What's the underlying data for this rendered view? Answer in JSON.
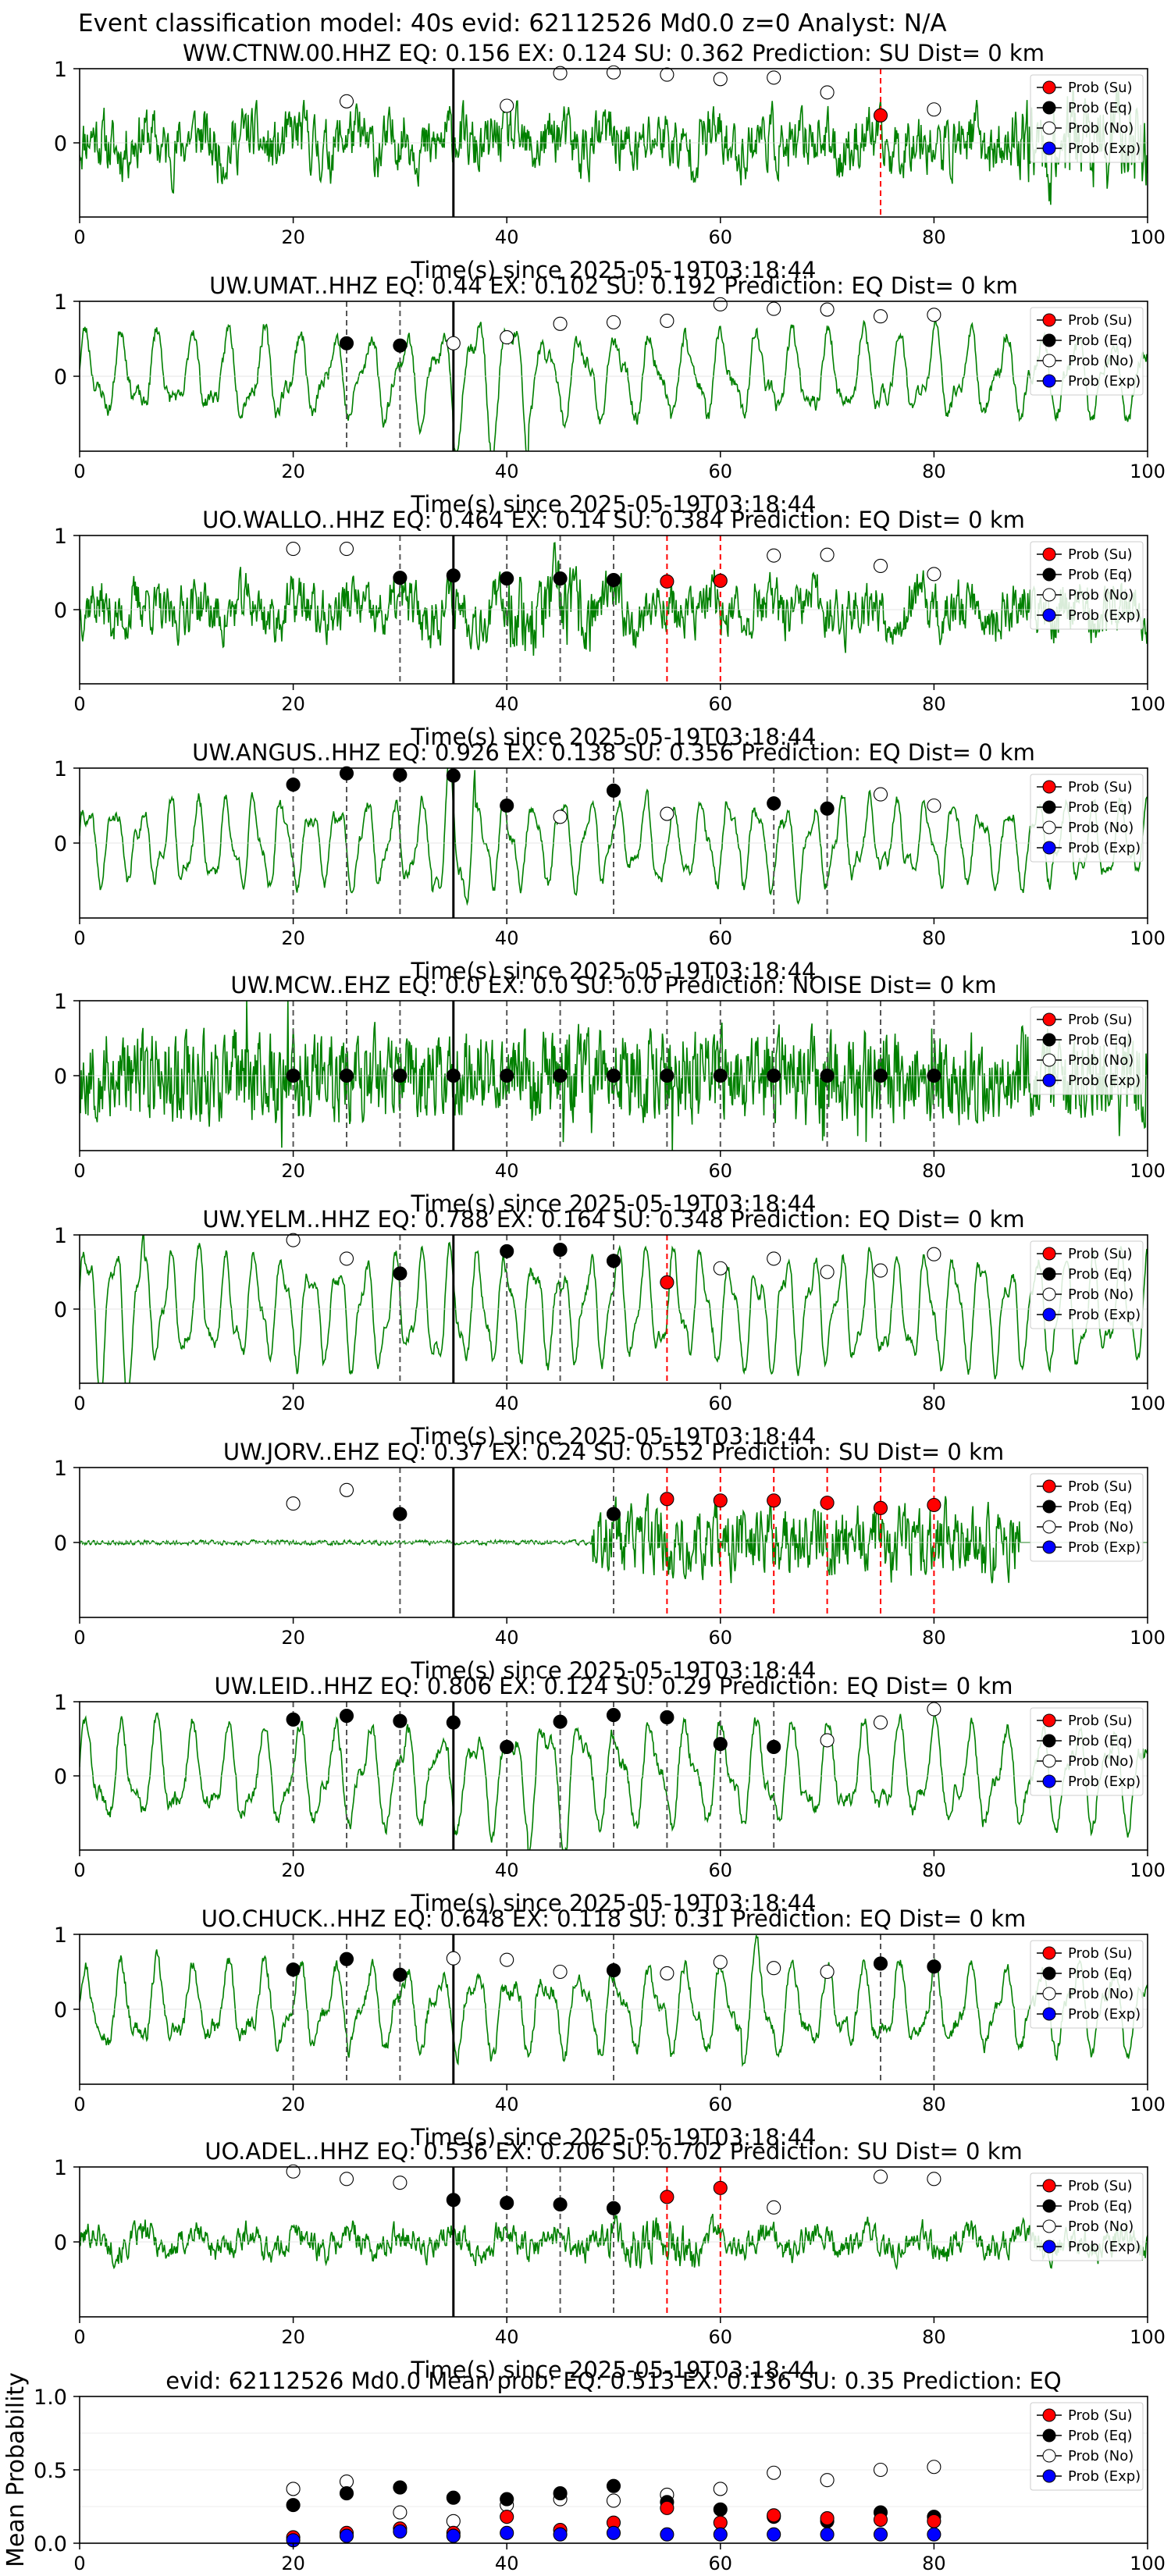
{
  "figure": {
    "suptitle": "Event classification model: 40s evid: 62112526 Md0.0 z=0 Analyst: N/A"
  },
  "colors": {
    "waveform": "#008000",
    "su_marker": "#ff0000",
    "eq_marker": "#000000",
    "no_marker": "#ffffff",
    "exp_marker": "#0000ff",
    "su_line": "#ff0000",
    "eq_line": "#555555",
    "event_line": "#000000"
  },
  "legend": {
    "labels": [
      "Prob (Su)",
      "Prob (Eq)",
      "Prob (No)",
      "Prob (Exp)"
    ],
    "placement": "upper-right"
  },
  "chart_data": [
    {
      "type": "line",
      "title": "WW.CTNW.00.HHZ   EQ: 0.156  EX: 0.124  SU: 0.362   Prediction: SU    Dist= 0 km",
      "xlabel": "Time(s) since 2025-05-19T03:18:44",
      "xlim": [
        0,
        100
      ],
      "ylim": [
        -1,
        1
      ],
      "x_ticks": [
        "0",
        "20",
        "40",
        "60",
        "80",
        "100"
      ],
      "y_ticks": [
        "0",
        "1"
      ],
      "event_line_x": 35,
      "waveform": {
        "amp": 0.55,
        "style": "noise",
        "burst": [
          88,
          100,
          1.6
        ],
        "seed": 11
      },
      "eq_lines": [],
      "su_lines": [
        75
      ],
      "prob_no": [
        [
          25,
          0.56
        ],
        [
          40,
          0.5
        ],
        [
          45,
          0.94
        ],
        [
          50,
          0.95
        ],
        [
          55,
          0.92
        ],
        [
          60,
          0.86
        ],
        [
          65,
          0.88
        ],
        [
          70,
          0.68
        ],
        [
          80,
          0.45
        ]
      ],
      "prob_eq": [],
      "prob_su": [
        [
          75,
          0.37
        ]
      ],
      "prob_exp": []
    },
    {
      "type": "line",
      "title": "UW.UMAT..HHZ   EQ: 0.44  EX: 0.102  SU: 0.192   Prediction: EQ    Dist= 0 km",
      "xlabel": "Time(s) since 2025-05-19T03:18:44",
      "xlim": [
        0,
        100
      ],
      "ylim": [
        -1,
        1
      ],
      "x_ticks": [
        "0",
        "20",
        "40",
        "60",
        "80",
        "100"
      ],
      "y_ticks": [
        "0",
        "1"
      ],
      "event_line_x": 35,
      "waveform": {
        "amp": 0.5,
        "style": "wave",
        "burst": [
          35,
          42,
          1.7
        ],
        "seed": 23
      },
      "eq_lines": [
        25,
        30
      ],
      "su_lines": [],
      "prob_no": [
        [
          35,
          0.44
        ],
        [
          40,
          0.52
        ],
        [
          45,
          0.7
        ],
        [
          50,
          0.72
        ],
        [
          55,
          0.74
        ],
        [
          60,
          0.96
        ],
        [
          65,
          0.9
        ],
        [
          70,
          0.89
        ],
        [
          75,
          0.8
        ],
        [
          80,
          0.82
        ]
      ],
      "prob_eq": [
        [
          25,
          0.44
        ],
        [
          30,
          0.41
        ]
      ],
      "prob_su": [],
      "prob_exp": []
    },
    {
      "type": "line",
      "title": "UO.WALLO..HHZ   EQ: 0.464  EX: 0.14  SU: 0.384   Prediction: EQ    Dist= 0 km",
      "xlabel": "Time(s) since 2025-05-19T03:18:44",
      "xlim": [
        0,
        100
      ],
      "ylim": [
        -1,
        1
      ],
      "x_ticks": [
        "0",
        "20",
        "40",
        "60",
        "80",
        "100"
      ],
      "y_ticks": [
        "0",
        "1"
      ],
      "event_line_x": 35,
      "waveform": {
        "amp": 0.5,
        "style": "noise",
        "burst": [
          40,
          48,
          1.6
        ],
        "seed": 37
      },
      "eq_lines": [
        30,
        40,
        45,
        50
      ],
      "su_lines": [
        55,
        60
      ],
      "prob_no": [
        [
          20,
          0.82
        ],
        [
          25,
          0.82
        ],
        [
          65,
          0.73
        ],
        [
          70,
          0.74
        ],
        [
          75,
          0.59
        ],
        [
          80,
          0.48
        ]
      ],
      "prob_eq": [
        [
          30,
          0.43
        ],
        [
          35,
          0.46
        ],
        [
          40,
          0.42
        ],
        [
          45,
          0.42
        ],
        [
          50,
          0.4
        ]
      ],
      "prob_su": [
        [
          55,
          0.38
        ],
        [
          60,
          0.39
        ]
      ],
      "prob_exp": []
    },
    {
      "type": "line",
      "title": "UW.ANGUS..HHZ   EQ: 0.926  EX: 0.138  SU: 0.356   Prediction: EQ    Dist= 0 km",
      "xlabel": "Time(s) since 2025-05-19T03:18:44",
      "xlim": [
        0,
        100
      ],
      "ylim": [
        -1,
        1
      ],
      "x_ticks": [
        "0",
        "20",
        "40",
        "60",
        "80",
        "100"
      ],
      "y_ticks": [
        "0",
        "1"
      ],
      "event_line_x": 35,
      "waveform": {
        "amp": 0.45,
        "style": "smooth",
        "burst": [
          33,
          37,
          2.0
        ],
        "seed": 41
      },
      "eq_lines": [
        20,
        25,
        30,
        35,
        40,
        50,
        65,
        70
      ],
      "su_lines": [],
      "prob_no": [
        [
          45,
          0.35
        ],
        [
          55,
          0.39
        ],
        [
          75,
          0.65
        ],
        [
          80,
          0.5
        ]
      ],
      "prob_eq": [
        [
          20,
          0.78
        ],
        [
          25,
          0.93
        ],
        [
          30,
          0.91
        ],
        [
          35,
          0.9
        ],
        [
          40,
          0.5
        ],
        [
          50,
          0.7
        ],
        [
          65,
          0.53
        ],
        [
          70,
          0.46
        ]
      ],
      "prob_su": [],
      "prob_exp": []
    },
    {
      "type": "line",
      "title": "UW.MCW..EHZ   EQ: 0.0  EX: 0.0  SU: 0.0   Prediction: NOISE    Dist= 0 km",
      "xlabel": "Time(s) since 2025-05-19T03:18:44",
      "xlim": [
        0,
        100
      ],
      "ylim": [
        -1,
        1
      ],
      "x_ticks": [
        "0",
        "20",
        "40",
        "60",
        "80",
        "100"
      ],
      "y_ticks": [
        "0",
        "1"
      ],
      "event_line_x": 35,
      "waveform": {
        "amp": 0.9,
        "style": "spiky",
        "burst": [
          0,
          0,
          1
        ],
        "seed": 53
      },
      "eq_lines": [
        20,
        25,
        30,
        35,
        40,
        45,
        50,
        55,
        60,
        65,
        70,
        75,
        80
      ],
      "su_lines": [],
      "prob_no": [],
      "prob_eq": [
        [
          20,
          0.0
        ],
        [
          25,
          0.0
        ],
        [
          30,
          0.0
        ],
        [
          35,
          0.0
        ],
        [
          40,
          0.0
        ],
        [
          45,
          0.0
        ],
        [
          50,
          0.0
        ],
        [
          55,
          0.0
        ],
        [
          60,
          0.0
        ],
        [
          65,
          0.0
        ],
        [
          70,
          0.0
        ],
        [
          75,
          0.0
        ],
        [
          80,
          0.0
        ]
      ],
      "prob_su": [],
      "prob_exp": []
    },
    {
      "type": "line",
      "title": "UW.YELM..HHZ   EQ: 0.788  EX: 0.164  SU: 0.348   Prediction: EQ    Dist= 0 km",
      "xlabel": "Time(s) since 2025-05-19T03:18:44",
      "xlim": [
        0,
        100
      ],
      "ylim": [
        -1,
        1
      ],
      "x_ticks": [
        "0",
        "20",
        "40",
        "60",
        "80",
        "100"
      ],
      "y_ticks": [
        "0",
        "1"
      ],
      "event_line_x": 35,
      "waveform": {
        "amp": 0.6,
        "style": "smooth",
        "burst": [
          0,
          6,
          1.6
        ],
        "seed": 67
      },
      "eq_lines": [
        30,
        40,
        45,
        50
      ],
      "su_lines": [
        55
      ],
      "prob_no": [
        [
          20,
          0.93
        ],
        [
          25,
          0.68
        ],
        [
          60,
          0.55
        ],
        [
          65,
          0.68
        ],
        [
          70,
          0.5
        ],
        [
          75,
          0.52
        ],
        [
          80,
          0.74
        ]
      ],
      "prob_eq": [
        [
          30,
          0.48
        ],
        [
          40,
          0.78
        ],
        [
          45,
          0.8
        ],
        [
          50,
          0.65
        ]
      ],
      "prob_su": [
        [
          55,
          0.36
        ]
      ],
      "prob_exp": []
    },
    {
      "type": "line",
      "title": "UW.JORV..EHZ   EQ: 0.37  EX: 0.24  SU: 0.552   Prediction: SU    Dist= 0 km",
      "xlabel": "Time(s) since 2025-05-19T03:18:44",
      "xlim": [
        0,
        100
      ],
      "ylim": [
        -1,
        1
      ],
      "x_ticks": [
        "0",
        "20",
        "40",
        "60",
        "80",
        "100"
      ],
      "y_ticks": [
        "0",
        "1"
      ],
      "event_line_x": 35,
      "waveform": {
        "amp": 0.05,
        "style": "quiet",
        "burst": [
          48,
          88,
          0.85
        ],
        "seed": 79
      },
      "eq_lines": [
        30,
        50
      ],
      "su_lines": [
        55,
        60,
        65,
        70,
        75,
        80
      ],
      "prob_no": [
        [
          20,
          0.52
        ],
        [
          25,
          0.7
        ]
      ],
      "prob_eq": [
        [
          30,
          0.38
        ],
        [
          50,
          0.38
        ]
      ],
      "prob_su": [
        [
          55,
          0.58
        ],
        [
          60,
          0.56
        ],
        [
          65,
          0.56
        ],
        [
          70,
          0.53
        ],
        [
          75,
          0.46
        ],
        [
          80,
          0.5
        ]
      ],
      "prob_exp": []
    },
    {
      "type": "line",
      "title": "UW.LEID..HHZ   EQ: 0.806  EX: 0.124  SU: 0.29   Prediction: EQ    Dist= 0 km",
      "xlabel": "Time(s) since 2025-05-19T03:18:44",
      "xlim": [
        0,
        100
      ],
      "ylim": [
        -1,
        1
      ],
      "x_ticks": [
        "0",
        "20",
        "40",
        "60",
        "80",
        "100"
      ],
      "y_ticks": [
        "0",
        "1"
      ],
      "event_line_x": 35,
      "waveform": {
        "amp": 0.6,
        "style": "wave",
        "burst": [
          42,
          48,
          1.5
        ],
        "seed": 83
      },
      "eq_lines": [
        20,
        25,
        30,
        35,
        40,
        45,
        50,
        55,
        60,
        65
      ],
      "su_lines": [],
      "prob_no": [
        [
          70,
          0.48
        ],
        [
          75,
          0.72
        ],
        [
          80,
          0.9
        ]
      ],
      "prob_eq": [
        [
          20,
          0.76
        ],
        [
          25,
          0.81
        ],
        [
          30,
          0.74
        ],
        [
          35,
          0.72
        ],
        [
          40,
          0.39
        ],
        [
          45,
          0.73
        ],
        [
          50,
          0.82
        ],
        [
          55,
          0.79
        ],
        [
          60,
          0.43
        ],
        [
          65,
          0.39
        ]
      ],
      "prob_su": [],
      "prob_exp": []
    },
    {
      "type": "line",
      "title": "UO.CHUCK..HHZ   EQ: 0.648  EX: 0.118  SU: 0.31   Prediction: EQ    Dist= 0 km",
      "xlabel": "Time(s) since 2025-05-19T03:18:44",
      "xlim": [
        0,
        100
      ],
      "ylim": [
        -1,
        1
      ],
      "x_ticks": [
        "0",
        "20",
        "40",
        "60",
        "80",
        "100"
      ],
      "y_ticks": [
        "0",
        "1"
      ],
      "event_line_x": 35,
      "waveform": {
        "amp": 0.5,
        "style": "wave",
        "burst": [
          62,
          66,
          1.5
        ],
        "seed": 97
      },
      "eq_lines": [
        20,
        25,
        30,
        50,
        75,
        80
      ],
      "su_lines": [],
      "prob_no": [
        [
          35,
          0.68
        ],
        [
          40,
          0.66
        ],
        [
          45,
          0.5
        ],
        [
          55,
          0.48
        ],
        [
          60,
          0.63
        ],
        [
          65,
          0.55
        ],
        [
          70,
          0.5
        ]
      ],
      "prob_eq": [
        [
          20,
          0.53
        ],
        [
          25,
          0.67
        ],
        [
          30,
          0.46
        ],
        [
          50,
          0.52
        ],
        [
          75,
          0.61
        ],
        [
          80,
          0.57
        ]
      ],
      "prob_su": [],
      "prob_exp": []
    },
    {
      "type": "line",
      "title": "UO.ADEL..HHZ   EQ: 0.536  EX: 0.206  SU: 0.702   Prediction: SU    Dist= 0 km",
      "xlabel": "Time(s) since 2025-05-19T03:18:44",
      "xlim": [
        0,
        100
      ],
      "ylim": [
        -1,
        1
      ],
      "x_ticks": [
        "0",
        "20",
        "40",
        "60",
        "80",
        "100"
      ],
      "y_ticks": [
        "0",
        "1"
      ],
      "event_line_x": 35,
      "waveform": {
        "amp": 0.25,
        "style": "noise",
        "burst": [
          49,
          58,
          1.6
        ],
        "seed": 101
      },
      "eq_lines": [
        40,
        45,
        50
      ],
      "su_lines": [
        55,
        60
      ],
      "prob_no": [
        [
          20,
          0.94
        ],
        [
          25,
          0.84
        ],
        [
          30,
          0.79
        ],
        [
          65,
          0.46
        ],
        [
          75,
          0.87
        ],
        [
          80,
          0.84
        ]
      ],
      "prob_eq": [
        [
          35,
          0.56
        ],
        [
          40,
          0.52
        ],
        [
          45,
          0.5
        ],
        [
          50,
          0.45
        ]
      ],
      "prob_su": [
        [
          55,
          0.6
        ],
        [
          60,
          0.72
        ]
      ],
      "prob_exp": []
    },
    {
      "type": "scatter",
      "title": "evid: 62112526   Md0.0   Mean prob:    EQ: 0.513  EX: 0.136  SU: 0.35   Prediction: EQ",
      "xlabel": "",
      "ylabel": "Mean Probability",
      "xlim": [
        0,
        100
      ],
      "ylim": [
        0,
        1
      ],
      "x_ticks": [
        "0",
        "20",
        "40",
        "60",
        "80",
        "100"
      ],
      "y_ticks": [
        "0.0",
        "0.5",
        "1.0"
      ],
      "x": [
        20,
        25,
        30,
        35,
        40,
        45,
        50,
        55,
        60,
        65,
        70,
        75,
        80
      ],
      "series": [
        {
          "name": "Prob (Su)",
          "values": [
            0.04,
            0.07,
            0.1,
            0.07,
            0.18,
            0.09,
            0.14,
            0.24,
            0.14,
            0.19,
            0.17,
            0.16,
            0.15
          ]
        },
        {
          "name": "Prob (Eq)",
          "values": [
            0.26,
            0.34,
            0.38,
            0.31,
            0.3,
            0.34,
            0.39,
            0.28,
            0.23,
            0.18,
            0.15,
            0.21,
            0.18
          ]
        },
        {
          "name": "Prob (No)",
          "values": [
            0.37,
            0.42,
            0.21,
            0.15,
            0.26,
            0.3,
            0.29,
            0.33,
            0.37,
            0.48,
            0.43,
            0.5,
            0.52
          ]
        },
        {
          "name": "Prob (Exp)",
          "values": [
            0.02,
            0.05,
            0.08,
            0.05,
            0.07,
            0.06,
            0.07,
            0.06,
            0.06,
            0.06,
            0.06,
            0.06,
            0.06
          ]
        }
      ]
    }
  ]
}
